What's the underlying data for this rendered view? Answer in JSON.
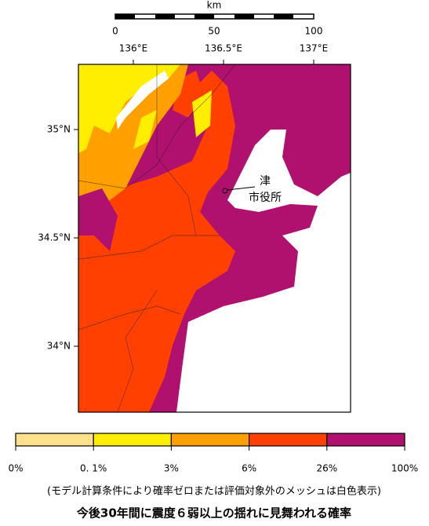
{
  "scale_bar": {
    "unit": "km",
    "ticks": [
      "0",
      "50",
      "100"
    ]
  },
  "longitude_labels": [
    "136°E",
    "136.5°E",
    "137°E"
  ],
  "latitude_labels": [
    "35°N",
    "34.5°N",
    "34°N"
  ],
  "place_label": {
    "name": "津",
    "sub": "市役所"
  },
  "legend": {
    "colors": [
      "#ffe08c",
      "#ffee00",
      "#ffa000",
      "#ff4000",
      "#b0106e"
    ],
    "labels": [
      "0%",
      "0. 1%",
      "3%",
      "6%",
      "26%",
      "100%"
    ]
  },
  "note": "(モデル計算条件により確率ゼロまたは評価対象外のメッシュは白色表示)",
  "title": "今後30年間に震度６弱以上の揺れに見舞われる確率"
}
